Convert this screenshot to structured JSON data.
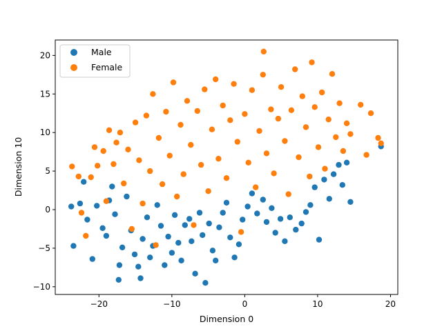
{
  "chart_data": {
    "type": "scatter",
    "title": "",
    "xlabel": "Dimension 0",
    "ylabel": "Dimension 10",
    "xlim": [
      -26,
      21
    ],
    "ylim": [
      -11,
      22
    ],
    "xticks": [
      -20,
      -10,
      0,
      10,
      20
    ],
    "yticks": [
      -10,
      -5,
      0,
      5,
      10,
      15,
      20
    ],
    "xtick_labels": [
      "−20",
      "−10",
      "0",
      "10",
      "20"
    ],
    "ytick_labels": [
      "−10",
      "−5",
      "0",
      "5",
      "10",
      "15",
      "20"
    ],
    "grid": false,
    "legend_position": "upper-left",
    "series": [
      {
        "name": "Male",
        "color": "#1f77b4",
        "points": [
          [
            -23.8,
            0.4
          ],
          [
            -23.5,
            -4.7
          ],
          [
            -22.6,
            0.8
          ],
          [
            -22.1,
            3.6
          ],
          [
            -21.6,
            -1.3
          ],
          [
            -20.9,
            -6.4
          ],
          [
            -20.3,
            0.5
          ],
          [
            -19.5,
            -2.4
          ],
          [
            -19.0,
            -3.4
          ],
          [
            -18.6,
            1.2
          ],
          [
            -18.2,
            3.0
          ],
          [
            -17.8,
            -0.6
          ],
          [
            -17.3,
            -9.1
          ],
          [
            -17.2,
            -7.2
          ],
          [
            -16.8,
            -4.9
          ],
          [
            -16.2,
            1.7
          ],
          [
            -15.6,
            -2.7
          ],
          [
            -15.1,
            -5.8
          ],
          [
            -14.6,
            -7.4
          ],
          [
            -14.3,
            -8.9
          ],
          [
            -14.0,
            -3.8
          ],
          [
            -13.4,
            -1.0
          ],
          [
            -13.0,
            -6.2
          ],
          [
            -12.6,
            -4.7
          ],
          [
            -12.0,
            0.6
          ],
          [
            -11.5,
            -2.1
          ],
          [
            -11.0,
            -7.2
          ],
          [
            -10.5,
            -3.5
          ],
          [
            -10.0,
            -5.6
          ],
          [
            -9.6,
            -0.7
          ],
          [
            -9.1,
            -4.3
          ],
          [
            -8.7,
            -6.6
          ],
          [
            -8.2,
            -2.0
          ],
          [
            -7.6,
            -1.2
          ],
          [
            -7.3,
            -4.1
          ],
          [
            -6.8,
            -8.3
          ],
          [
            -6.2,
            -0.4
          ],
          [
            -5.8,
            -3.3
          ],
          [
            -5.4,
            -9.5
          ],
          [
            -4.9,
            -1.8
          ],
          [
            -4.4,
            -5.3
          ],
          [
            -4.0,
            -6.6
          ],
          [
            -3.5,
            -2.3
          ],
          [
            -3.0,
            -0.4
          ],
          [
            -2.5,
            0.9
          ],
          [
            -2.0,
            -3.6
          ],
          [
            -1.4,
            -6.2
          ],
          [
            -0.8,
            -4.5
          ],
          [
            -0.3,
            -1.3
          ],
          [
            0.4,
            0.4
          ],
          [
            1.0,
            2.1
          ],
          [
            1.7,
            -0.5
          ],
          [
            2.5,
            1.3
          ],
          [
            3.0,
            -1.6
          ],
          [
            3.7,
            0.2
          ],
          [
            4.2,
            -3.0
          ],
          [
            4.9,
            -1.2
          ],
          [
            5.5,
            -4.1
          ],
          [
            6.2,
            -1.0
          ],
          [
            7.0,
            -2.6
          ],
          [
            7.8,
            -1.8
          ],
          [
            8.4,
            -0.3
          ],
          [
            9.0,
            0.6
          ],
          [
            9.6,
            2.9
          ],
          [
            10.2,
            -3.9
          ],
          [
            10.9,
            3.9
          ],
          [
            11.6,
            1.4
          ],
          [
            12.2,
            4.6
          ],
          [
            12.9,
            5.8
          ],
          [
            13.4,
            3.2
          ],
          [
            14.0,
            6.1
          ],
          [
            14.5,
            1.0
          ],
          [
            18.7,
            8.2
          ]
        ]
      },
      {
        "name": "Female",
        "color": "#ff7f0e",
        "points": [
          [
            -23.7,
            5.6
          ],
          [
            -22.8,
            4.3
          ],
          [
            -22.4,
            -0.4
          ],
          [
            -21.8,
            -3.4
          ],
          [
            -21.1,
            4.2
          ],
          [
            -20.6,
            8.1
          ],
          [
            -20.2,
            5.7
          ],
          [
            -19.4,
            7.6
          ],
          [
            -19.0,
            1.1
          ],
          [
            -18.6,
            10.3
          ],
          [
            -18.0,
            5.9
          ],
          [
            -17.6,
            8.7
          ],
          [
            -17.1,
            10.0
          ],
          [
            -16.6,
            3.4
          ],
          [
            -16.0,
            7.8
          ],
          [
            -15.5,
            -2.5
          ],
          [
            -15.0,
            11.3
          ],
          [
            -14.5,
            6.4
          ],
          [
            -14.0,
            0.8
          ],
          [
            -13.5,
            12.2
          ],
          [
            -13.0,
            5.0
          ],
          [
            -12.6,
            15.0
          ],
          [
            -12.2,
            -4.6
          ],
          [
            -11.8,
            9.3
          ],
          [
            -11.3,
            3.3
          ],
          [
            -10.8,
            12.7
          ],
          [
            -10.3,
            7.0
          ],
          [
            -9.8,
            16.5
          ],
          [
            -9.3,
            1.7
          ],
          [
            -8.8,
            11.0
          ],
          [
            -8.4,
            4.6
          ],
          [
            -7.9,
            14.1
          ],
          [
            -7.4,
            8.4
          ],
          [
            -7.0,
            -2.0
          ],
          [
            -6.5,
            12.8
          ],
          [
            -6.0,
            5.8
          ],
          [
            -5.5,
            15.6
          ],
          [
            -5.0,
            2.4
          ],
          [
            -4.5,
            10.4
          ],
          [
            -4.0,
            16.9
          ],
          [
            -3.6,
            6.6
          ],
          [
            -3.0,
            13.5
          ],
          [
            -2.5,
            4.1
          ],
          [
            -2.0,
            11.6
          ],
          [
            -1.5,
            16.3
          ],
          [
            -1.0,
            8.8
          ],
          [
            -0.5,
            -2.9
          ],
          [
            0.0,
            12.4
          ],
          [
            0.5,
            6.1
          ],
          [
            1.0,
            15.5
          ],
          [
            1.5,
            2.9
          ],
          [
            2.0,
            10.2
          ],
          [
            2.5,
            17.5
          ],
          [
            2.6,
            20.5
          ],
          [
            3.0,
            7.3
          ],
          [
            3.6,
            13.0
          ],
          [
            4.0,
            4.7
          ],
          [
            4.6,
            11.8
          ],
          [
            5.0,
            15.9
          ],
          [
            5.5,
            8.9
          ],
          [
            6.0,
            2.0
          ],
          [
            6.4,
            12.9
          ],
          [
            6.9,
            18.2
          ],
          [
            7.4,
            6.8
          ],
          [
            7.9,
            14.7
          ],
          [
            8.4,
            10.7
          ],
          [
            8.9,
            4.3
          ],
          [
            9.2,
            19.1
          ],
          [
            9.6,
            13.3
          ],
          [
            10.1,
            8.1
          ],
          [
            10.6,
            15.2
          ],
          [
            11.0,
            5.3
          ],
          [
            11.5,
            11.7
          ],
          [
            12.0,
            17.6
          ],
          [
            12.5,
            9.4
          ],
          [
            13.0,
            13.8
          ],
          [
            13.5,
            7.6
          ],
          [
            14.0,
            11.2
          ],
          [
            14.5,
            9.8
          ],
          [
            15.9,
            13.6
          ],
          [
            16.7,
            7.1
          ],
          [
            17.3,
            12.5
          ],
          [
            18.3,
            9.3
          ],
          [
            18.7,
            8.6
          ]
        ]
      }
    ]
  }
}
